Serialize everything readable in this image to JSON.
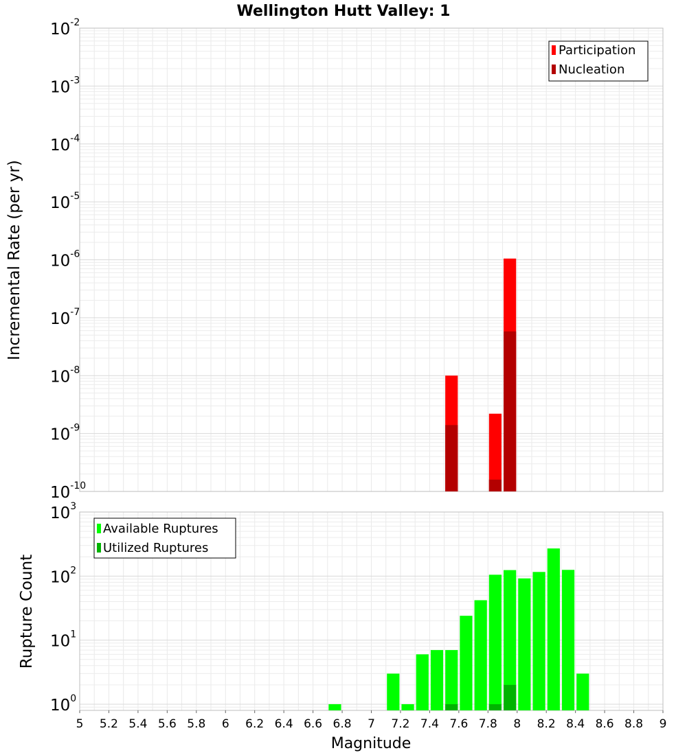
{
  "chart_data": [
    {
      "type": "bar",
      "title": "Wellington Hutt Valley: 1",
      "xlabel": "",
      "ylabel": "Incremental Rate (per yr)",
      "yscale": "log",
      "xlim": [
        5,
        9
      ],
      "ylim": [
        1e-10,
        0.01
      ],
      "y_ticks": [
        {
          "base": "10",
          "exp": "-10",
          "value": 1e-10
        },
        {
          "base": "10",
          "exp": "-9",
          "value": 1e-09
        },
        {
          "base": "10",
          "exp": "-8",
          "value": 1e-08
        },
        {
          "base": "10",
          "exp": "-7",
          "value": 1e-07
        },
        {
          "base": "10",
          "exp": "-6",
          "value": 1e-06
        },
        {
          "base": "10",
          "exp": "-5",
          "value": 1e-05
        },
        {
          "base": "10",
          "exp": "-4",
          "value": 0.0001
        },
        {
          "base": "10",
          "exp": "-3",
          "value": 0.001
        },
        {
          "base": "10",
          "exp": "-2",
          "value": 0.01
        }
      ],
      "bin_width": 0.1,
      "series": [
        {
          "name": "Participation",
          "color": "#ff0000",
          "points": [
            {
              "x": 7.55,
              "y": 1e-08
            },
            {
              "x": 7.85,
              "y": 2.2e-09
            },
            {
              "x": 7.95,
              "y": 1.05e-06
            }
          ]
        },
        {
          "name": "Nucleation",
          "color": "#b30000",
          "points": [
            {
              "x": 7.55,
              "y": 1.4e-09
            },
            {
              "x": 7.85,
              "y": 1.6e-10
            },
            {
              "x": 7.95,
              "y": 5.8e-08
            }
          ]
        }
      ],
      "legend": {
        "position": "top-right",
        "entries": [
          "Participation",
          "Nucleation"
        ]
      },
      "grid": true
    },
    {
      "type": "bar",
      "title": "",
      "xlabel": "Magnitude",
      "ylabel": "Rupture Count",
      "yscale": "log",
      "xlim": [
        5,
        9
      ],
      "ylim": [
        0.8,
        1000
      ],
      "x_ticks": [
        "5",
        "5.2",
        "5.4",
        "5.6",
        "5.8",
        "6",
        "6.2",
        "6.4",
        "6.6",
        "6.8",
        "7",
        "7.2",
        "7.4",
        "7.6",
        "7.8",
        "8",
        "8.2",
        "8.4",
        "8.6",
        "8.8",
        "9"
      ],
      "y_ticks": [
        {
          "base": "10",
          "exp": "0",
          "value": 1
        },
        {
          "base": "10",
          "exp": "1",
          "value": 10
        },
        {
          "base": "10",
          "exp": "2",
          "value": 100
        },
        {
          "base": "10",
          "exp": "3",
          "value": 1000
        }
      ],
      "bin_width": 0.1,
      "series": [
        {
          "name": "Available Ruptures",
          "color": "#00ff00",
          "points": [
            {
              "x": 6.75,
              "y": 1
            },
            {
              "x": 7.15,
              "y": 3
            },
            {
              "x": 7.25,
              "y": 1
            },
            {
              "x": 7.35,
              "y": 6
            },
            {
              "x": 7.45,
              "y": 7
            },
            {
              "x": 7.55,
              "y": 7
            },
            {
              "x": 7.65,
              "y": 24
            },
            {
              "x": 7.75,
              "y": 42
            },
            {
              "x": 7.85,
              "y": 105
            },
            {
              "x": 7.95,
              "y": 124
            },
            {
              "x": 8.05,
              "y": 92
            },
            {
              "x": 8.15,
              "y": 116
            },
            {
              "x": 8.25,
              "y": 270
            },
            {
              "x": 8.35,
              "y": 125
            },
            {
              "x": 8.45,
              "y": 3
            }
          ]
        },
        {
          "name": "Utilized Ruptures",
          "color": "#00b300",
          "points": [
            {
              "x": 7.55,
              "y": 1
            },
            {
              "x": 7.85,
              "y": 1
            },
            {
              "x": 7.95,
              "y": 2
            }
          ]
        }
      ],
      "legend": {
        "position": "top-left",
        "entries": [
          "Available Ruptures",
          "Utilized Ruptures"
        ]
      },
      "grid": true
    }
  ]
}
